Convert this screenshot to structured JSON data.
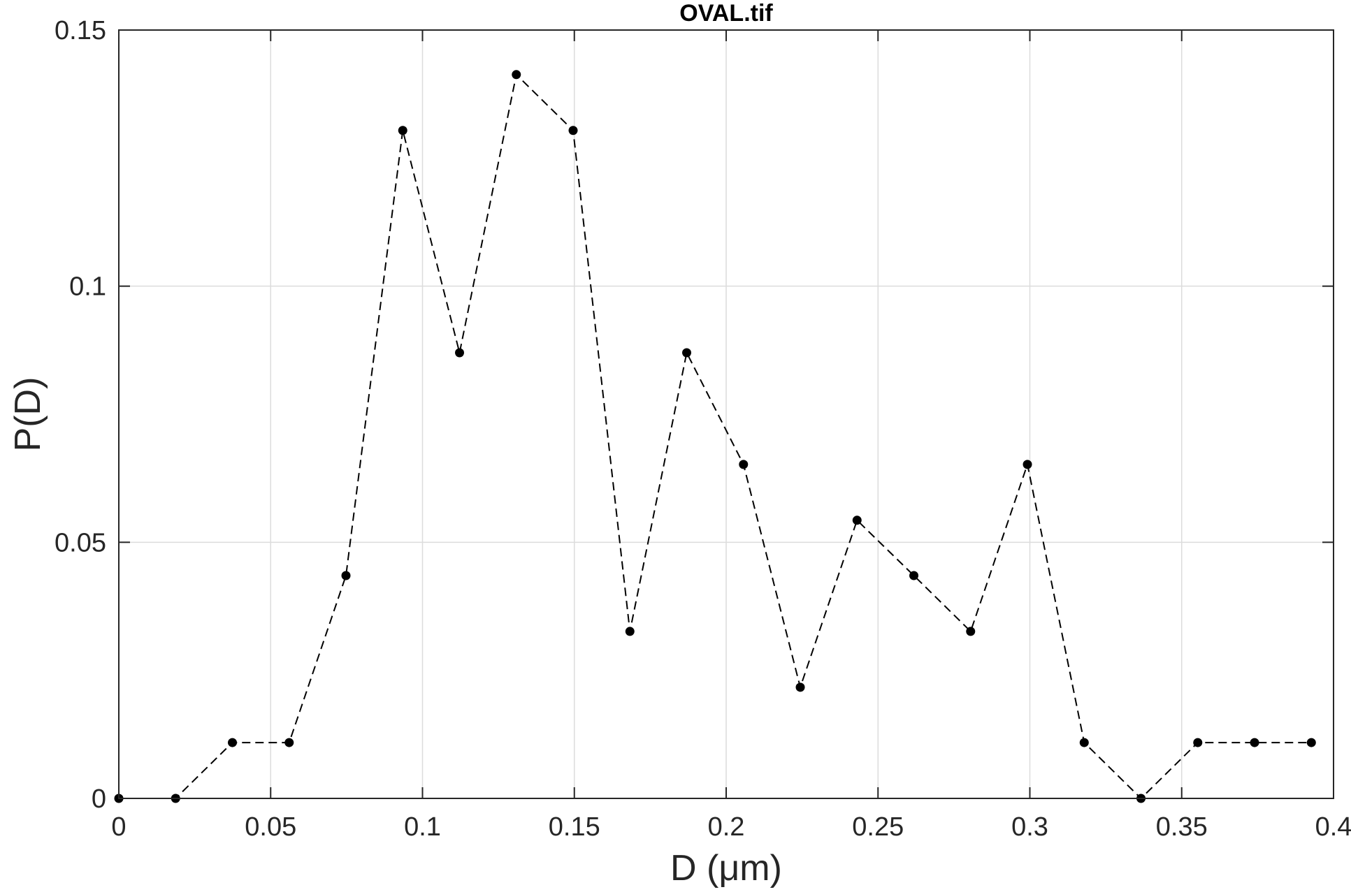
{
  "chart_data": {
    "type": "line",
    "title": "OVAL.tif",
    "xlabel": "D  (μm)",
    "ylabel": "P(D)",
    "xlim": [
      0,
      0.4
    ],
    "ylim": [
      0,
      0.15
    ],
    "xticks": [
      0,
      0.05,
      0.1,
      0.15,
      0.2,
      0.25,
      0.3,
      0.35,
      0.4
    ],
    "xtick_labels": [
      "0",
      "0.05",
      "0.1",
      "0.15",
      "0.2",
      "0.25",
      "0.3",
      "0.35",
      "0.4"
    ],
    "yticks": [
      0,
      0.05,
      0.1,
      0.15
    ],
    "ytick_labels": [
      "0",
      "0.05",
      "0.1",
      "0.15"
    ],
    "grid": true,
    "line_style": "dashed",
    "marker": "filled-circle",
    "colors": {
      "line": "#000000",
      "grid": "#dcdcdc",
      "axes": "#262626"
    },
    "series": [
      {
        "x": [
          0,
          0.0187,
          0.0374,
          0.0561,
          0.0748,
          0.0935,
          0.1122,
          0.1309,
          0.1496,
          0.1683,
          0.187,
          0.2057,
          0.2244,
          0.2431,
          0.2618,
          0.2805,
          0.2992,
          0.3179,
          0.3366,
          0.3553,
          0.374,
          0.3927
        ],
        "y": [
          0,
          0,
          0.0109,
          0.0109,
          0.0435,
          0.1304,
          0.087,
          0.1413,
          0.1304,
          0.0326,
          0.087,
          0.0652,
          0.0217,
          0.0543,
          0.0435,
          0.0326,
          0.0652,
          0.0109,
          0,
          0.0109,
          0.0109,
          0.0109
        ]
      }
    ]
  }
}
